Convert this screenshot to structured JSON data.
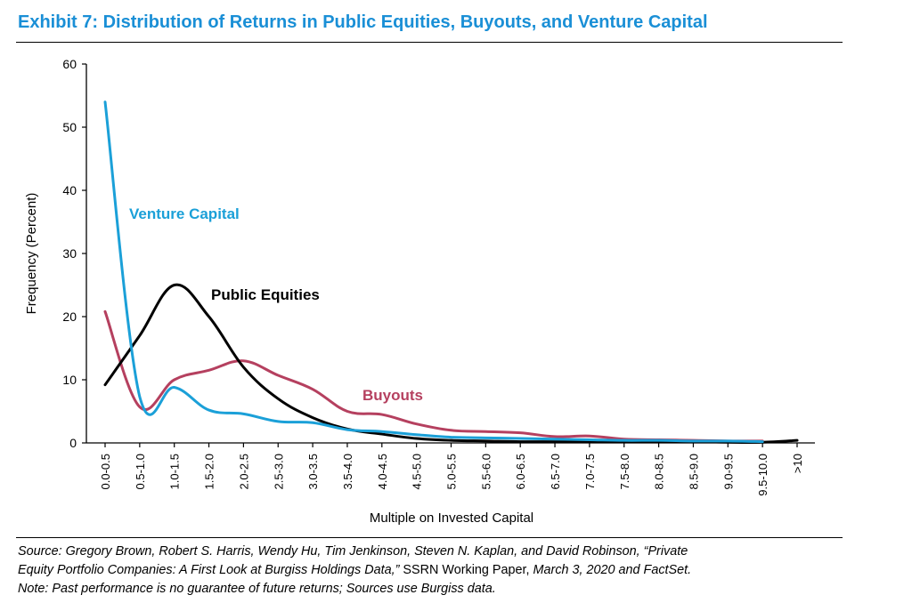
{
  "title": "Exhibit 7: Distribution of Returns in Public Equities, Buyouts, and Venture Capital",
  "chart_data": {
    "type": "line",
    "xlabel": "Multiple on Invested Capital",
    "ylabel": "Frequency (Percent)",
    "ylim": [
      0,
      60
    ],
    "yticks": [
      0,
      10,
      20,
      30,
      40,
      50,
      60
    ],
    "categories": [
      "0.0-0.5",
      "0.5-1.0",
      "1.0-1.5",
      "1.5-2.0",
      "2.0-2.5",
      "2.5-3.0",
      "3.0-3.5",
      "3.5-4.0",
      "4.0-4.5",
      "4.5-5.0",
      "5.0-5.5",
      "5.5-6.0",
      "6.0-6.5",
      "6.5-7.0",
      "7.0-7.5",
      "7.5-8.0",
      "8.0-8.5",
      "8.5-9.0",
      "9.0-9.5",
      "9.5-10.0",
      ">10"
    ],
    "series": [
      {
        "name": "Venture Capital",
        "color": "#1ba0d8",
        "values": [
          54.0,
          7.3,
          8.8,
          5.2,
          4.6,
          3.4,
          3.2,
          2.1,
          1.8,
          1.3,
          0.9,
          0.8,
          0.7,
          0.6,
          0.5,
          0.4,
          0.4,
          0.3,
          0.3,
          0.2,
          null
        ]
      },
      {
        "name": "Public Equities",
        "color": "#000000",
        "values": [
          9.2,
          17.0,
          25.0,
          20.0,
          12.0,
          7.0,
          4.0,
          2.2,
          1.4,
          0.7,
          0.4,
          0.3,
          0.2,
          0.2,
          0.2,
          0.2,
          0.2,
          0.2,
          0.1,
          0.1,
          0.4
        ]
      },
      {
        "name": "Buyouts",
        "color": "#b5405f",
        "values": [
          20.8,
          5.7,
          10.0,
          11.5,
          13.0,
          10.7,
          8.5,
          5.0,
          4.5,
          3.0,
          2.0,
          1.8,
          1.6,
          1.0,
          1.1,
          0.6,
          0.5,
          0.4,
          0.3,
          0.3,
          null
        ]
      }
    ]
  },
  "footer": {
    "line1": "Source: Gregory Brown, Robert S. Harris, Wendy Hu, Tim Jenkinson, Steven N. Kaplan, and David Robinson, “Private",
    "line2a": "Equity Portfolio Companies: A First Look at Burgiss Holdings Data,”",
    "line2b": " SSRN Working Paper, ",
    "line2c": "March 3, 2020 and FactSet.",
    "line3": "Note: Past performance is no guarantee of future returns; Sources use Burgiss data."
  }
}
